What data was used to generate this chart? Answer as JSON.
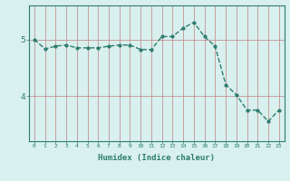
{
  "x": [
    0,
    1,
    2,
    3,
    4,
    5,
    6,
    7,
    8,
    9,
    10,
    11,
    12,
    13,
    14,
    15,
    16,
    17,
    18,
    19,
    20,
    21,
    22,
    23
  ],
  "y": [
    5.0,
    4.83,
    4.88,
    4.9,
    4.85,
    4.85,
    4.85,
    4.88,
    4.9,
    4.9,
    4.82,
    4.82,
    5.05,
    5.05,
    5.2,
    5.3,
    5.05,
    4.88,
    4.2,
    4.02,
    3.75,
    3.75,
    3.55,
    3.75
  ],
  "line_color": "#2e7d6e",
  "marker": "o",
  "marker_size": 2,
  "bg_color": "#d8f0ee",
  "grid_color": "#c08080",
  "xlabel": "Humidex (Indice chaleur)",
  "xlabel_fontsize": 6.5,
  "yticks": [
    4,
    5
  ],
  "ylim": [
    3.2,
    5.6
  ],
  "xlim": [
    -0.5,
    23.5
  ],
  "line_width": 1.0,
  "axis_color": "#2e7d6e",
  "tick_color": "#2e7d6e",
  "xtick_fontsize": 4.5,
  "ytick_fontsize": 6.5
}
